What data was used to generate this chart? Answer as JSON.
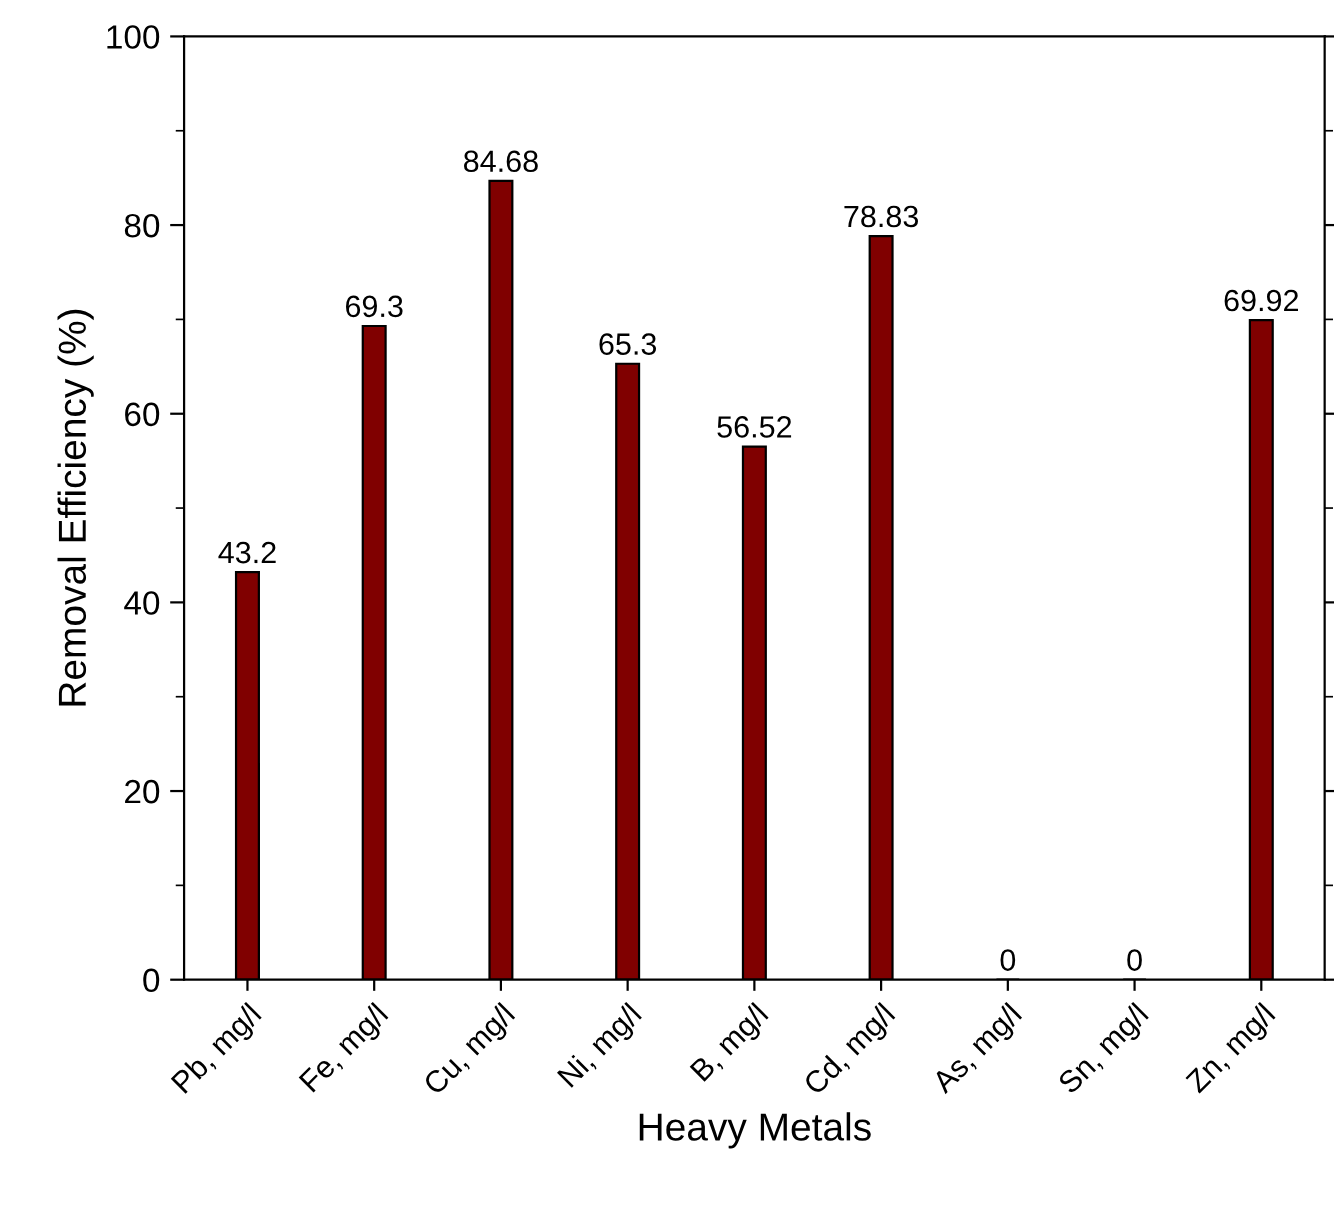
{
  "chart_data": {
    "type": "bar",
    "xlabel": "Heavy Metals",
    "ylabel": "Removal Efficiency (%)",
    "categories": [
      "Pb, mg/l",
      "Fe, mg/l",
      "Cu, mg/l",
      "Ni, mg/l",
      "B, mg/l",
      "Cd, mg/l",
      "As, mg/l",
      "Sn, mg/l",
      "Zn, mg/l"
    ],
    "values": [
      43.2,
      69.3,
      84.68,
      65.3,
      56.52,
      78.83,
      0,
      0,
      69.92
    ],
    "color": "#800000",
    "ylim": [
      0,
      100
    ],
    "yticks": [
      0,
      20,
      40,
      60,
      80,
      100
    ],
    "data_labels": true,
    "grid": false,
    "legend": false
  }
}
